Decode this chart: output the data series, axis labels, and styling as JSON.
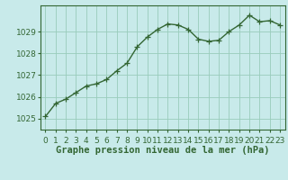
{
  "x": [
    0,
    1,
    2,
    3,
    4,
    5,
    6,
    7,
    8,
    9,
    10,
    11,
    12,
    13,
    14,
    15,
    16,
    17,
    18,
    19,
    20,
    21,
    22,
    23
  ],
  "y": [
    1025.1,
    1025.7,
    1025.9,
    1026.2,
    1026.5,
    1026.6,
    1026.8,
    1027.2,
    1027.55,
    1028.3,
    1028.75,
    1029.1,
    1029.35,
    1029.3,
    1029.1,
    1028.65,
    1028.55,
    1028.6,
    1029.0,
    1029.3,
    1029.75,
    1029.45,
    1029.5,
    1029.3
  ],
  "line_color": "#336633",
  "marker": "+",
  "marker_size": 4,
  "marker_color": "#336633",
  "bg_color": "#c8eaea",
  "grid_color": "#99ccbb",
  "axis_color": "#336633",
  "title": "Graphe pression niveau de la mer (hPa)",
  "title_fontsize": 7.5,
  "title_color": "#336633",
  "xlabel_ticks": [
    "0",
    "1",
    "2",
    "3",
    "4",
    "5",
    "6",
    "7",
    "8",
    "9",
    "10",
    "11",
    "12",
    "13",
    "14",
    "15",
    "16",
    "17",
    "18",
    "19",
    "20",
    "21",
    "22",
    "23"
  ],
  "ylim": [
    1024.5,
    1030.2
  ],
  "yticks": [
    1025,
    1026,
    1027,
    1028,
    1029
  ],
  "xlim": [
    -0.5,
    23.5
  ],
  "tick_fontsize": 6.5,
  "linewidth": 1.0
}
